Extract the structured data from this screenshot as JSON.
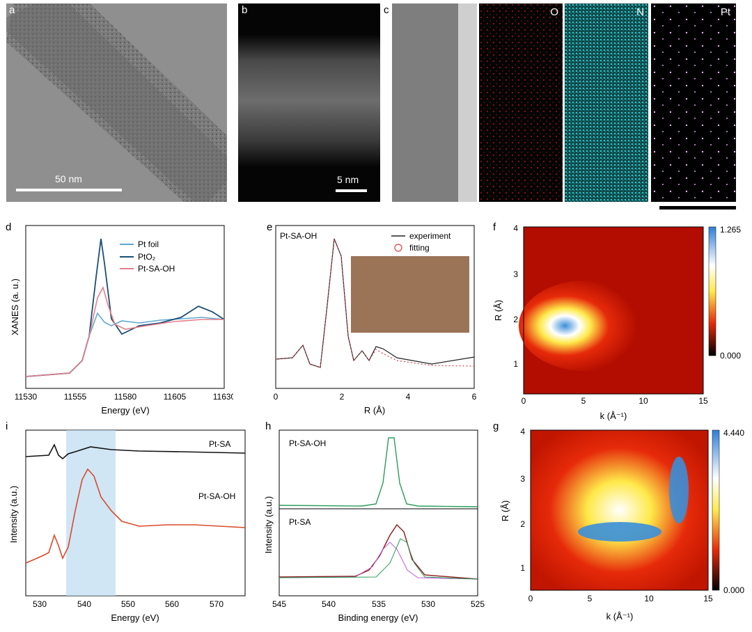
{
  "panels": {
    "a": {
      "label": "a",
      "scalebar": "50 nm"
    },
    "b": {
      "label": "b",
      "scalebar": "5 nm"
    },
    "c": {
      "label": "c",
      "maps": [
        "O",
        "N",
        "Pt"
      ]
    },
    "d": {
      "label": "d",
      "legend": [
        "Pt foil",
        "PtO₂",
        "Pt-SA-OH"
      ]
    },
    "e": {
      "label": "e",
      "inset_title": "Pt-SA-OH",
      "legend": [
        "experiment",
        "fitting"
      ]
    },
    "f": {
      "label": "f",
      "colorbar": [
        "1.265",
        "0.000"
      ]
    },
    "g": {
      "label": "g",
      "colorbar": [
        "4.440",
        "0.000"
      ]
    },
    "h": {
      "label": "h",
      "top_sample": "Pt-SA-OH",
      "bottom_sample": "Pt-SA"
    },
    "i": {
      "label": "i",
      "curves": [
        "Pt-SA",
        "Pt-SA-OH"
      ]
    }
  },
  "chart_data": [
    {
      "id": "d",
      "type": "line",
      "xlabel": "Energy (eV)",
      "ylabel": "XANES (a. u.)",
      "xlim": [
        11530,
        11630
      ],
      "xticks": [
        "11530",
        "11555",
        "11580",
        "11605",
        "11630"
      ],
      "series": [
        {
          "name": "Pt foil",
          "color": "#5fa8d3"
        },
        {
          "name": "PtO₂",
          "color": "#1c4e73"
        },
        {
          "name": "Pt-SA-OH",
          "color": "#e57f8a"
        }
      ]
    },
    {
      "id": "e",
      "type": "line",
      "xlabel": "R (Å)",
      "xlim": [
        0,
        6
      ],
      "xticks": [
        "0",
        "2",
        "4",
        "6"
      ],
      "series": [
        {
          "name": "experiment",
          "color": "#222222"
        },
        {
          "name": "fitting",
          "color": "#d9404a"
        }
      ]
    },
    {
      "id": "f",
      "type": "heatmap",
      "xlabel": "k (Å⁻¹)",
      "ylabel": "R (Å)",
      "xlim": [
        0,
        15
      ],
      "ylim": [
        0.5,
        4
      ],
      "xticks": [
        "0",
        "5",
        "10",
        "15"
      ],
      "yticks": [
        "1",
        "2",
        "3",
        "4"
      ],
      "colorbar_range": [
        0.0,
        1.265
      ]
    },
    {
      "id": "g",
      "type": "heatmap",
      "xlabel": "k (Å⁻¹)",
      "ylabel": "R (Å)",
      "xlim": [
        0,
        15
      ],
      "ylim": [
        0.5,
        4
      ],
      "xticks": [
        "0",
        "5",
        "10",
        "15"
      ],
      "yticks": [
        "1",
        "2",
        "3",
        "4"
      ],
      "colorbar_range": [
        0.0,
        4.44
      ]
    },
    {
      "id": "h",
      "type": "line",
      "xlabel": "Binding energy (eV)",
      "ylabel": "Intensity (a.u.)",
      "xlim": [
        545,
        525
      ],
      "xticks": [
        "545",
        "540",
        "535",
        "530",
        "525"
      ]
    },
    {
      "id": "i",
      "type": "line",
      "xlabel": "Energy (eV)",
      "ylabel": "Intensity (a.u.)",
      "xlim": [
        525,
        575
      ],
      "xticks": [
        "530",
        "540",
        "550",
        "560",
        "570"
      ],
      "highlight_range": [
        534.5,
        545.5
      ]
    }
  ]
}
